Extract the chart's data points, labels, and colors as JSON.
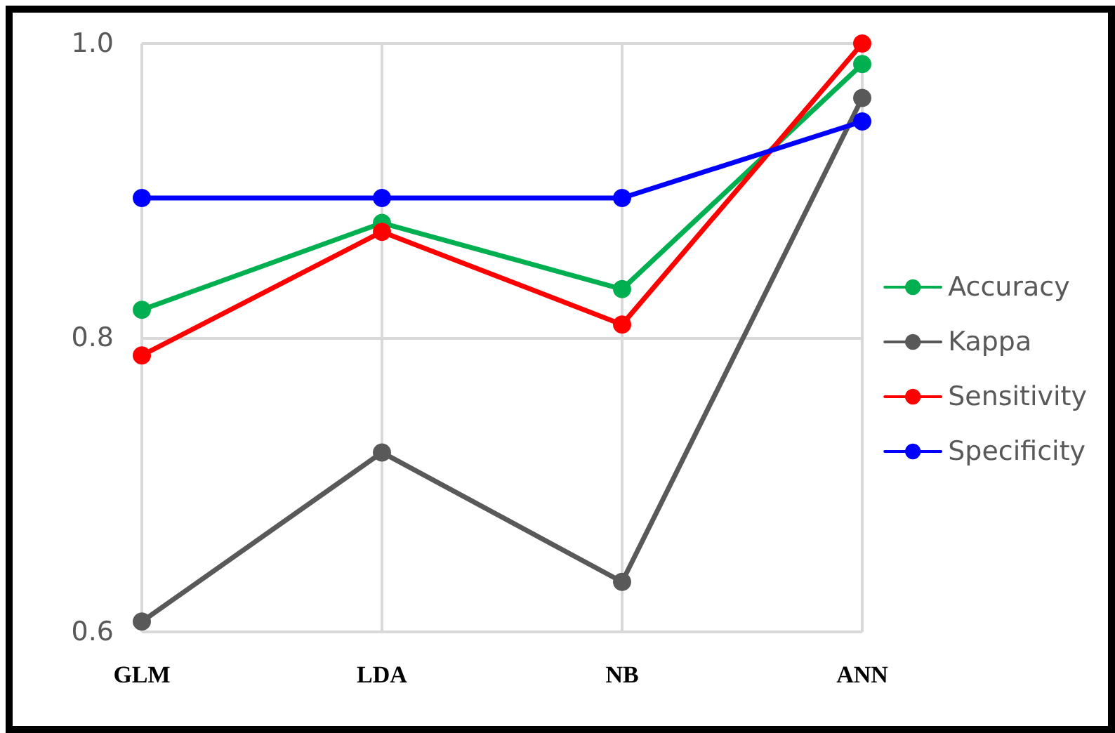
{
  "chart_data": {
    "type": "line",
    "categories": [
      "GLM",
      "LDA",
      "NB",
      "ANN"
    ],
    "series": [
      {
        "name": "Accuracy",
        "color": "#00b050",
        "values": [
          0.819,
          0.878,
          0.833,
          0.986
        ]
      },
      {
        "name": "Kappa",
        "color": "#595959",
        "values": [
          0.607,
          0.722,
          0.634,
          0.963
        ]
      },
      {
        "name": "Sensitivity",
        "color": "#ff0000",
        "values": [
          0.788,
          0.872,
          0.809,
          1.0
        ]
      },
      {
        "name": "Specificity",
        "color": "#0000ff",
        "values": [
          0.895,
          0.895,
          0.895,
          0.947
        ]
      }
    ],
    "ylim": [
      0.6,
      1.0
    ],
    "yticks": [
      0.6,
      0.8,
      {
        "value": 1.0,
        "label": "1.0"
      }
    ],
    "grid": true,
    "legend": "right",
    "marker": "circle",
    "line_style": "solid"
  }
}
